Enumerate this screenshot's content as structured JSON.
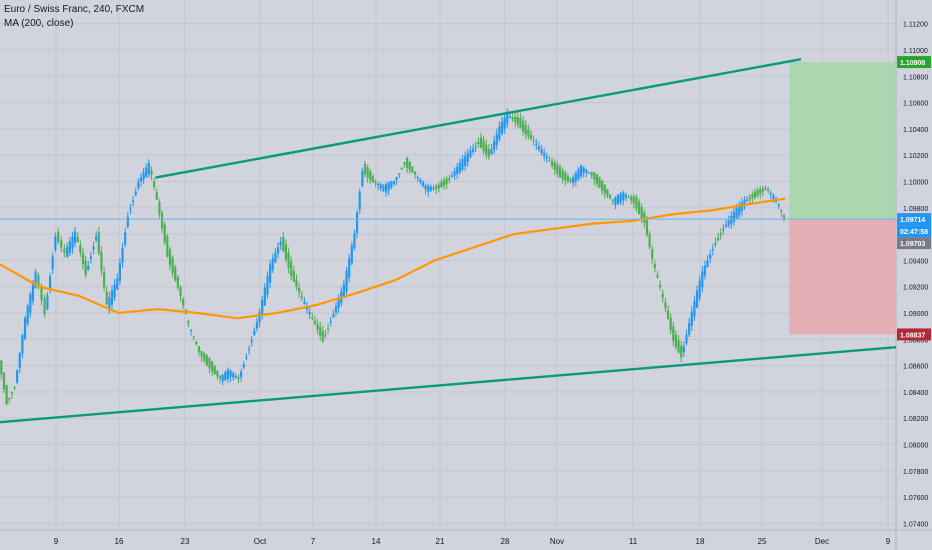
{
  "legend": {
    "symbol_line": "Euro / Swiss Franc, 240, FXCM",
    "indicator_line": "MA (200, close)"
  },
  "colors": {
    "background": "#d1d4dc",
    "grid": "#c3c6ce",
    "up_candle": "#2196f3",
    "down_candle": "#4caf50",
    "ma_line": "#ff9800",
    "channel_line": "#089981",
    "current_price_line": "#64b5f6",
    "target_zone": "#a5d6a7",
    "stop_zone": "#e9a6ad",
    "target_label": "#26a62b",
    "stop_label": "#b22833",
    "price_label": "#2196f3",
    "countdown_label": "#2196f3",
    "close_label": "#787b86"
  },
  "chart_data": {
    "type": "candlestick",
    "symbol": "Euro / Swiss Franc",
    "interval": "240",
    "source": "FXCM",
    "indicator": "MA (200, close)",
    "x_ticks": [
      "9",
      "16",
      "23",
      "Oct",
      "7",
      "14",
      "21",
      "28",
      "Nov",
      "11",
      "18",
      "25",
      "Dec",
      "9"
    ],
    "y_ticks": [
      "1.11200",
      "1.11000",
      "1.10800",
      "1.10600",
      "1.10400",
      "1.10200",
      "1.10000",
      "1.09800",
      "1.09600",
      "1.09400",
      "1.09200",
      "1.09000",
      "1.08800",
      "1.08600",
      "1.08400",
      "1.08200",
      "1.08000",
      "1.07800",
      "1.07600",
      "1.07400"
    ],
    "ylim": [
      1.0735,
      1.1138
    ],
    "price_series": [
      {
        "x": 0,
        "price": 1.0864
      },
      {
        "x": 0.6,
        "price": 1.0832
      },
      {
        "x": 1.2,
        "price": 1.0845
      },
      {
        "x": 2.0,
        "price": 1.0895
      },
      {
        "x": 2.8,
        "price": 1.093
      },
      {
        "x": 3.5,
        "price": 1.09
      },
      {
        "x": 4.3,
        "price": 1.096
      },
      {
        "x": 5.0,
        "price": 1.0945
      },
      {
        "x": 5.8,
        "price": 1.096
      },
      {
        "x": 6.6,
        "price": 1.093
      },
      {
        "x": 7.4,
        "price": 1.096
      },
      {
        "x": 8.2,
        "price": 1.0905
      },
      {
        "x": 9.0,
        "price": 1.0925
      },
      {
        "x": 9.8,
        "price": 1.0975
      },
      {
        "x": 10.6,
        "price": 1.1
      },
      {
        "x": 11.4,
        "price": 1.1012
      },
      {
        "x": 12.0,
        "price": 1.0985
      },
      {
        "x": 12.8,
        "price": 1.0945
      },
      {
        "x": 13.6,
        "price": 1.092
      },
      {
        "x": 14.4,
        "price": 1.089
      },
      {
        "x": 15.2,
        "price": 1.087
      },
      {
        "x": 16.0,
        "price": 1.086
      },
      {
        "x": 16.8,
        "price": 1.085
      },
      {
        "x": 17.4,
        "price": 1.0855
      },
      {
        "x": 18.2,
        "price": 1.085
      },
      {
        "x": 19.0,
        "price": 1.0875
      },
      {
        "x": 19.8,
        "price": 1.09
      },
      {
        "x": 20.6,
        "price": 1.0935
      },
      {
        "x": 21.4,
        "price": 1.0955
      },
      {
        "x": 22.2,
        "price": 1.093
      },
      {
        "x": 23.0,
        "price": 1.091
      },
      {
        "x": 23.8,
        "price": 1.0895
      },
      {
        "x": 24.6,
        "price": 1.088
      },
      {
        "x": 25.4,
        "price": 1.09
      },
      {
        "x": 26.2,
        "price": 1.092
      },
      {
        "x": 27.0,
        "price": 1.096
      },
      {
        "x": 27.6,
        "price": 1.101
      },
      {
        "x": 28.4,
        "price": 1.1
      },
      {
        "x": 29.2,
        "price": 1.0995
      },
      {
        "x": 30.0,
        "price": 1.1
      },
      {
        "x": 30.8,
        "price": 1.1015
      },
      {
        "x": 31.6,
        "price": 1.1005
      },
      {
        "x": 32.4,
        "price": 1.0995
      },
      {
        "x": 33.2,
        "price": 1.0995
      },
      {
        "x": 34.0,
        "price": 1.1
      },
      {
        "x": 34.8,
        "price": 1.101
      },
      {
        "x": 35.6,
        "price": 1.102
      },
      {
        "x": 36.4,
        "price": 1.103
      },
      {
        "x": 37.2,
        "price": 1.102
      },
      {
        "x": 38.0,
        "price": 1.104
      },
      {
        "x": 38.6,
        "price": 1.105
      },
      {
        "x": 39.4,
        "price": 1.1045
      },
      {
        "x": 40.2,
        "price": 1.1035
      },
      {
        "x": 41.0,
        "price": 1.1025
      },
      {
        "x": 41.8,
        "price": 1.1015
      },
      {
        "x": 42.6,
        "price": 1.1005
      },
      {
        "x": 43.4,
        "price": 1.1
      },
      {
        "x": 44.2,
        "price": 1.101
      },
      {
        "x": 45.0,
        "price": 1.1005
      },
      {
        "x": 45.8,
        "price": 1.0995
      },
      {
        "x": 46.6,
        "price": 1.0985
      },
      {
        "x": 47.4,
        "price": 1.099
      },
      {
        "x": 48.2,
        "price": 1.0985
      },
      {
        "x": 49.0,
        "price": 1.097
      },
      {
        "x": 49.6,
        "price": 1.094
      },
      {
        "x": 50.4,
        "price": 1.091
      },
      {
        "x": 51.2,
        "price": 1.088
      },
      {
        "x": 51.8,
        "price": 1.0868
      },
      {
        "x": 52.6,
        "price": 1.09
      },
      {
        "x": 53.4,
        "price": 1.093
      },
      {
        "x": 54.2,
        "price": 1.095
      },
      {
        "x": 55.0,
        "price": 1.0965
      },
      {
        "x": 55.8,
        "price": 1.0975
      },
      {
        "x": 56.6,
        "price": 1.0985
      },
      {
        "x": 57.4,
        "price": 1.099
      },
      {
        "x": 58.2,
        "price": 1.0995
      },
      {
        "x": 59.0,
        "price": 1.0985
      },
      {
        "x": 59.6,
        "price": 1.0971
      }
    ],
    "moving_average": [
      {
        "x": 0,
        "price": 1.0937
      },
      {
        "x": 3,
        "price": 1.092
      },
      {
        "x": 6,
        "price": 1.0913
      },
      {
        "x": 9,
        "price": 1.09
      },
      {
        "x": 12,
        "price": 1.0903
      },
      {
        "x": 15,
        "price": 1.09
      },
      {
        "x": 18,
        "price": 1.0896
      },
      {
        "x": 21,
        "price": 1.09
      },
      {
        "x": 24,
        "price": 1.0906
      },
      {
        "x": 27,
        "price": 1.0915
      },
      {
        "x": 30,
        "price": 1.0925
      },
      {
        "x": 33,
        "price": 1.094
      },
      {
        "x": 36,
        "price": 1.095
      },
      {
        "x": 39,
        "price": 1.096
      },
      {
        "x": 42,
        "price": 1.0964
      },
      {
        "x": 45,
        "price": 1.0968
      },
      {
        "x": 48,
        "price": 1.097
      },
      {
        "x": 51,
        "price": 1.0975
      },
      {
        "x": 54,
        "price": 1.0978
      },
      {
        "x": 57,
        "price": 1.0983
      },
      {
        "x": 59.6,
        "price": 1.0987
      }
    ],
    "x_range": [
      0,
      68
    ],
    "trendlines": [
      {
        "name": "upper-channel",
        "start": {
          "x": 11.8,
          "price": 1.1003
        },
        "end": {
          "x": 60.8,
          "price": 1.1093
        }
      },
      {
        "name": "lower-channel",
        "start": {
          "x": 0,
          "price": 1.0817
        },
        "end": {
          "x": 68,
          "price": 1.0874
        }
      }
    ],
    "position": {
      "entry": 1.09714,
      "target": 1.10908,
      "stop": 1.08837,
      "x_start": 59.9,
      "x_end": 68
    },
    "price_labels": {
      "target": "1.10908",
      "current": "1.09714",
      "countdown": "02:47:58",
      "close": "1.09703",
      "stop": "1.08837"
    }
  }
}
